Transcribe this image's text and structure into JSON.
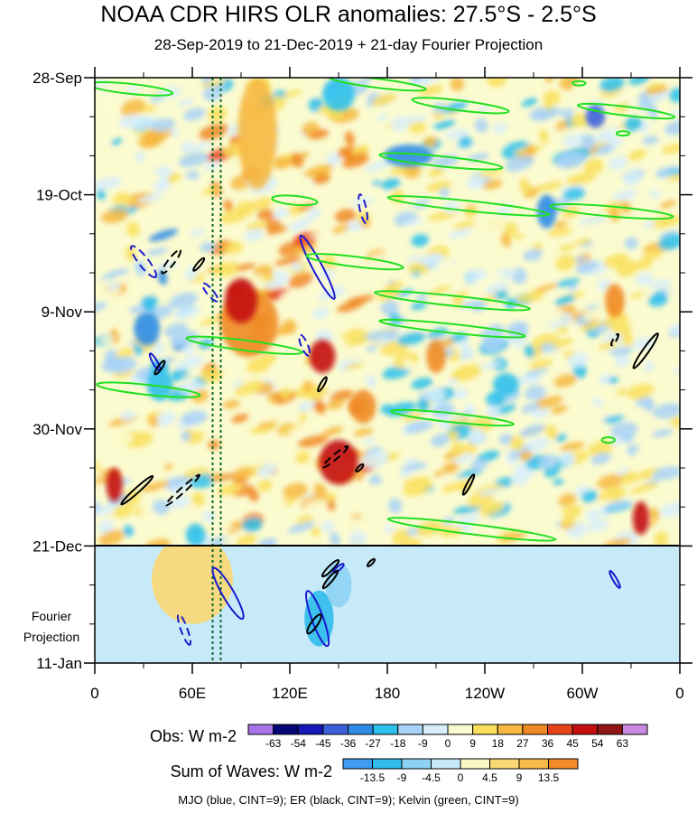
{
  "title": "NOAA CDR HIRS OLR anomalies: 27.5°S - 2.5°S",
  "subtitle": "28-Sep-2019 to 21-Dec-2019 + 21-day Fourier Projection",
  "footnote": "MJO (blue, CINT=9); ER (black, CINT=9); Kelvin (green, CINT=9)",
  "chart_data": {
    "type": "heatmap",
    "title": "NOAA CDR HIRS OLR anomalies: 27.5°S - 2.5°S",
    "subtitle": "28-Sep-2019 to 21-Dec-2019 + 21-day Fourier Projection",
    "x_axis": {
      "range_deg": [
        0,
        360
      ],
      "ticks": [
        {
          "deg": 0,
          "label": "0"
        },
        {
          "deg": 60,
          "label": "60E"
        },
        {
          "deg": 120,
          "label": "120E"
        },
        {
          "deg": 180,
          "label": "180"
        },
        {
          "deg": 240,
          "label": "120W"
        },
        {
          "deg": 300,
          "label": "60W"
        },
        {
          "deg": 360,
          "label": "0"
        }
      ]
    },
    "y_axis": {
      "start": "2019-09-28",
      "end": "2020-01-11",
      "observed_end": "2019-12-21",
      "ticks": [
        {
          "day": 0,
          "label": "28-Sep"
        },
        {
          "day": 21,
          "label": "19-Oct"
        },
        {
          "day": 42,
          "label": "9-Nov"
        },
        {
          "day": 63,
          "label": "30-Nov"
        },
        {
          "day": 84,
          "label": "21-Dec"
        },
        {
          "day": 105,
          "label": "11-Jan"
        }
      ],
      "projection_label_line1": "Fourier",
      "projection_label_line2": "Projection"
    },
    "reference_lines_deg": [
      72.5,
      77.5
    ],
    "obs_colorbar": {
      "label": "Obs: W m-2",
      "levels": [
        "-63",
        "-54",
        "-45",
        "-36",
        "-27",
        "-18",
        "-9",
        "0",
        "9",
        "18",
        "27",
        "36",
        "45",
        "54",
        "63"
      ],
      "colors": [
        "#a875e8",
        "#06067a",
        "#1717b8",
        "#3a5fd8",
        "#2f8ce6",
        "#2cc0ec",
        "#a8d2f7",
        "#d8eefb",
        "#fbfbd0",
        "#f9df5c",
        "#f6b840",
        "#f08a25",
        "#e8421b",
        "#c40f10",
        "#901616",
        "#c888e0"
      ]
    },
    "waves_colorbar": {
      "label": "Sum of Waves: W m-2",
      "levels": [
        "-13.5",
        "-9",
        "-4.5",
        "0",
        "4.5",
        "9",
        "13.5"
      ],
      "colors": [
        "#3e9df0",
        "#30bdec",
        "#8ed2f3",
        "#c7eaf8",
        "#fbf7c3",
        "#fad873",
        "#f8b94a",
        "#f28a2c"
      ]
    },
    "wave_contours": {
      "MJO": {
        "color": "#1a1ad0",
        "cint": 9
      },
      "ER": {
        "color": "#000000",
        "cint": 9
      },
      "Kelvin": {
        "color": "#20e020",
        "cint": 9
      }
    },
    "blobs": [
      {
        "lon": 95,
        "day": 44,
        "rx": 18,
        "ry": 6,
        "v": 27
      },
      {
        "lon": 90,
        "day": 40,
        "rx": 10,
        "ry": 4,
        "v": 45
      },
      {
        "lon": 140,
        "day": 50,
        "rx": 8,
        "ry": 3,
        "v": 45
      },
      {
        "lon": 150,
        "day": 69,
        "rx": 12,
        "ry": 4,
        "v": 45
      },
      {
        "lon": 165,
        "day": 59,
        "rx": 8,
        "ry": 3,
        "v": 27
      },
      {
        "lon": 100,
        "day": 10,
        "rx": 12,
        "ry": 10,
        "v": 18
      },
      {
        "lon": 12,
        "day": 73,
        "rx": 5,
        "ry": 3,
        "v": 45
      },
      {
        "lon": 336,
        "day": 79,
        "rx": 5,
        "ry": 3,
        "v": 45
      },
      {
        "lon": 210,
        "day": 50,
        "rx": 6,
        "ry": 3,
        "v": 27
      },
      {
        "lon": 320,
        "day": 40,
        "rx": 6,
        "ry": 3,
        "v": 27
      },
      {
        "lon": 32,
        "day": 45,
        "rx": 8,
        "ry": 3,
        "v": -36
      },
      {
        "lon": 40,
        "day": 55,
        "rx": 8,
        "ry": 3,
        "v": -27
      },
      {
        "lon": 150,
        "day": 3,
        "rx": 10,
        "ry": 3,
        "v": -27
      },
      {
        "lon": 193,
        "day": 14,
        "rx": 15,
        "ry": 2,
        "v": -36
      },
      {
        "lon": 278,
        "day": 24,
        "rx": 6,
        "ry": 3,
        "v": -36
      },
      {
        "lon": 308,
        "day": 7,
        "rx": 6,
        "ry": 2,
        "v": -45
      },
      {
        "lon": 253,
        "day": 55,
        "rx": 8,
        "ry": 2,
        "v": -27
      },
      {
        "lon": 62,
        "day": 82,
        "rx": 6,
        "ry": 2,
        "v": -27
      }
    ],
    "waves_blobs": [
      {
        "lon": 138,
        "day": 97,
        "rx": 9,
        "ry": 5,
        "v": -13.5
      },
      {
        "lon": 150,
        "day": 91,
        "rx": 8,
        "ry": 4,
        "v": -9
      },
      {
        "lon": 60,
        "day": 90,
        "rx": 25,
        "ry": 8,
        "v": 4.5
      },
      {
        "lon": 220,
        "day": 90,
        "rx": 30,
        "ry": 10,
        "v": -4.5
      },
      {
        "lon": 338,
        "day": 92,
        "rx": 7,
        "ry": 6,
        "v": -4.5
      }
    ],
    "ellipses": [
      {
        "wave": "ER",
        "lon": 47,
        "day": 33,
        "rx": 9,
        "ry": 2,
        "rot": -52,
        "dash": true
      },
      {
        "wave": "MJO",
        "lon": 30,
        "day": 33,
        "rx": 12,
        "ry": 3,
        "rot": 52,
        "dash": true
      },
      {
        "wave": "ER",
        "lon": 64,
        "day": 33.5,
        "rx": 5,
        "ry": 1.2,
        "rot": -50,
        "dash": false
      },
      {
        "wave": "MJO",
        "lon": 71,
        "day": 38.5,
        "rx": 7,
        "ry": 2,
        "rot": 50,
        "dash": true
      },
      {
        "wave": "MJO",
        "lon": 37,
        "day": 51,
        "rx": 6,
        "ry": 1.4,
        "rot": 60,
        "dash": false
      },
      {
        "wave": "ER",
        "lon": 40,
        "day": 52,
        "rx": 5,
        "ry": 1.3,
        "rot": -55,
        "dash": false
      },
      {
        "wave": "MJO",
        "lon": 137,
        "day": 34,
        "rx": 22,
        "ry": 3,
        "rot": 62,
        "dash": false
      },
      {
        "wave": "MJO",
        "lon": 165,
        "day": 23.5,
        "rx": 9,
        "ry": 2,
        "rot": 78,
        "dash": true
      },
      {
        "wave": "MJO",
        "lon": 129,
        "day": 48,
        "rx": 7,
        "ry": 2,
        "rot": 67,
        "dash": true
      },
      {
        "wave": "ER",
        "lon": 140,
        "day": 55,
        "rx": 5,
        "ry": 1.2,
        "rot": -60,
        "dash": false
      },
      {
        "wave": "ER",
        "lon": 148,
        "day": 68,
        "rx": 10,
        "ry": 1.5,
        "rot": -40,
        "dash": true
      },
      {
        "wave": "ER",
        "lon": 163,
        "day": 70,
        "rx": 3,
        "ry": 1,
        "rot": -45,
        "dash": false
      },
      {
        "wave": "ER",
        "lon": 230,
        "day": 73,
        "rx": 7,
        "ry": 1.2,
        "rot": -62,
        "dash": false
      },
      {
        "wave": "ER",
        "lon": 26,
        "day": 74,
        "rx": 13,
        "ry": 1.5,
        "rot": -42,
        "dash": false
      },
      {
        "wave": "ER",
        "lon": 54,
        "day": 74,
        "rx": 14,
        "ry": 1.5,
        "rot": -42,
        "dash": true
      },
      {
        "wave": "ER",
        "lon": 339,
        "day": 49,
        "rx": 13,
        "ry": 1.8,
        "rot": -55,
        "dash": false
      },
      {
        "wave": "ER",
        "lon": 320,
        "day": 47,
        "rx": 4,
        "ry": 1,
        "rot": -60,
        "dash": true
      },
      {
        "wave": "MJO",
        "lon": 137,
        "day": 97,
        "rx": 18,
        "ry": 3.5,
        "rot": 70,
        "dash": false
      },
      {
        "wave": "MJO",
        "lon": 82,
        "day": 92.5,
        "rx": 18,
        "ry": 3.5,
        "rot": 60,
        "dash": false
      },
      {
        "wave": "MJO",
        "lon": 55,
        "day": 99,
        "rx": 10,
        "ry": 2,
        "rot": 70,
        "dash": true
      },
      {
        "wave": "ER",
        "lon": 135,
        "day": 98,
        "rx": 7,
        "ry": 2,
        "rot": -55,
        "dash": false
      },
      {
        "wave": "ER",
        "lon": 145,
        "day": 88,
        "rx": 7,
        "ry": 1.5,
        "rot": -45,
        "dash": false
      },
      {
        "wave": "MJO",
        "lon": 150,
        "day": 88,
        "rx": 4,
        "ry": 1.2,
        "rot": -40,
        "dash": false
      },
      {
        "wave": "ER",
        "lon": 170,
        "day": 87,
        "rx": 3,
        "ry": 1,
        "rot": -45,
        "dash": false
      },
      {
        "wave": "ER",
        "lon": 145,
        "day": 90,
        "rx": 7,
        "ry": 1.4,
        "rot": -50,
        "dash": false
      },
      {
        "wave": "MJO",
        "lon": 320,
        "day": 90,
        "rx": 6,
        "ry": 1.2,
        "rot": 60,
        "dash": false
      }
    ],
    "kelvin_bands": [
      {
        "lon": 22,
        "day": 2,
        "rx": 26,
        "ry": 0.9,
        "rot": 6
      },
      {
        "lon": 123,
        "day": 22,
        "rx": 14,
        "ry": 0.8,
        "rot": 5
      },
      {
        "lon": 174,
        "day": 1,
        "rx": 30,
        "ry": 0.8,
        "rot": 7
      },
      {
        "lon": 225,
        "day": 5,
        "rx": 30,
        "ry": 0.9,
        "rot": 7
      },
      {
        "lon": 327,
        "day": 6,
        "rx": 30,
        "ry": 0.8,
        "rot": 7
      },
      {
        "lon": 213,
        "day": 15,
        "rx": 38,
        "ry": 0.9,
        "rot": 6
      },
      {
        "lon": 230,
        "day": 23,
        "rx": 50,
        "ry": 0.9,
        "rot": 6
      },
      {
        "lon": 318,
        "day": 24,
        "rx": 38,
        "ry": 0.9,
        "rot": 5
      },
      {
        "lon": 160,
        "day": 33,
        "rx": 30,
        "ry": 0.9,
        "rot": 7
      },
      {
        "lon": 220,
        "day": 40,
        "rx": 48,
        "ry": 0.9,
        "rot": 6
      },
      {
        "lon": 220,
        "day": 45,
        "rx": 45,
        "ry": 0.8,
        "rot": 6
      },
      {
        "lon": 92,
        "day": 48,
        "rx": 36,
        "ry": 0.9,
        "rot": 7
      },
      {
        "lon": 33,
        "day": 56,
        "rx": 32,
        "ry": 0.9,
        "rot": 6
      },
      {
        "lon": 220,
        "day": 61,
        "rx": 38,
        "ry": 0.8,
        "rot": 6
      },
      {
        "lon": 232,
        "day": 81,
        "rx": 52,
        "ry": 0.9,
        "rot": 7
      },
      {
        "lon": 316,
        "day": 65,
        "rx": 4,
        "ry": 0.5,
        "rot": 0
      },
      {
        "lon": 298,
        "day": 1,
        "rx": 4,
        "ry": 0.4,
        "rot": 0
      },
      {
        "lon": 325,
        "day": 10,
        "rx": 4,
        "ry": 0.4,
        "rot": 0
      }
    ]
  }
}
